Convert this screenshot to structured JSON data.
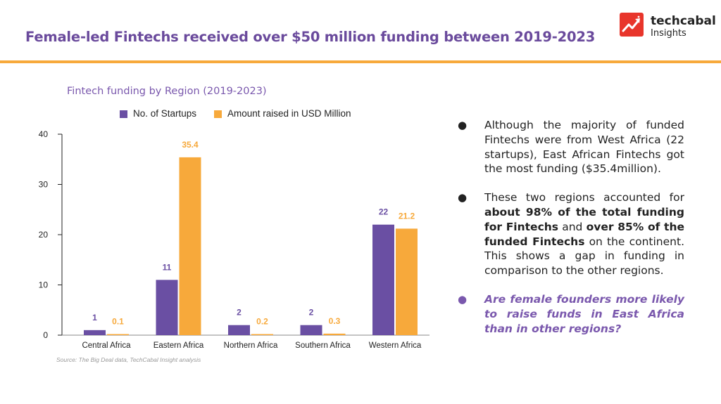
{
  "header": {
    "title": "Female-led Fintechs received over $50 million funding between 2019-2023",
    "brand_name": "techcabal",
    "brand_sub": "Insights"
  },
  "colors": {
    "accent_purple": "#6a4fa3",
    "accent_orange": "#f7a93b",
    "title_purple": "#6a4a9c",
    "brand_red": "#e8352b"
  },
  "chart_data": {
    "type": "bar",
    "title": "Fintech funding by Region (2019-2023)",
    "categories": [
      "Central Africa",
      "Eastern Africa",
      "Northern Africa",
      "Southern Africa",
      "Western Africa"
    ],
    "series": [
      {
        "name": "No. of Startups",
        "values": [
          1,
          11,
          2,
          2,
          22
        ],
        "labels": [
          "1",
          "11",
          "2",
          "2",
          "22"
        ],
        "color": "#6a4fa3"
      },
      {
        "name": "Amount raised in USD Million",
        "values": [
          0.1,
          35.4,
          0.2,
          0.3,
          21.2
        ],
        "labels": [
          "0.1",
          "35.4",
          "0.2",
          "0.3",
          "21.2"
        ],
        "color": "#f7a93b"
      }
    ],
    "yticks": [
      "0",
      "10",
      "20",
      "30",
      "40"
    ],
    "ylim": [
      0,
      40
    ],
    "grid": false,
    "legend": "top",
    "source": "Source: The Big Deal data, TechCabal Insight analysis"
  },
  "insights": {
    "b1": "Although the majority of funded Fintechs were from West Africa (22 startups), East African Fintechs got the most funding ($35.4million).",
    "b2_a": "These two regions accounted for ",
    "b2_b": "about 98% of the total funding for Fintechs",
    "b2_c": " and ",
    "b2_d": "over 85% of the funded Fintechs",
    "b2_e": " on the continent. This shows a gap in funding in comparison to the other regions.",
    "b3": "Are female founders more likely to raise funds in East Africa than in other regions?"
  }
}
